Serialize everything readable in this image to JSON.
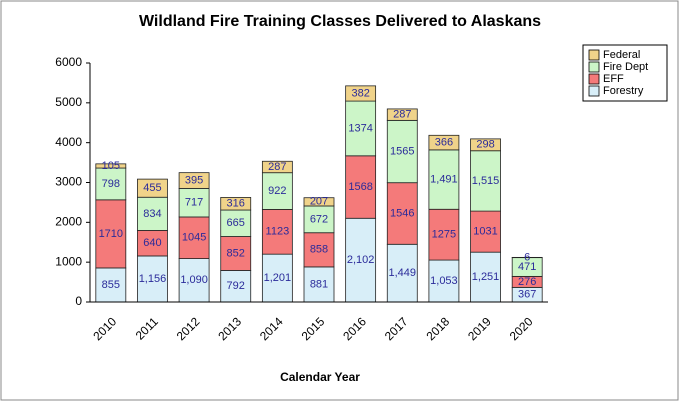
{
  "chart_data": {
    "type": "stacked_bar",
    "title": "Wildland Fire Training Classes Delivered to Alaskans",
    "x_label": "Calendar Year",
    "categories": [
      "2010",
      "2011",
      "2012",
      "2013",
      "2014",
      "2015",
      "2016",
      "2017",
      "2018",
      "2019",
      "2020"
    ],
    "series": [
      {
        "name": "Forestry",
        "color": "#d8eef8",
        "values": [
          855,
          1156,
          1090,
          792,
          1201,
          881,
          2102,
          1449,
          1053,
          1251,
          367
        ],
        "value_labels": [
          "855",
          "1,156",
          "1,090",
          "792",
          "1,201",
          "881",
          "2,102",
          "1,449",
          "1,053",
          "1,251",
          "367"
        ]
      },
      {
        "name": "EFF",
        "color": "#f47a7a",
        "values": [
          1710,
          640,
          1045,
          852,
          1123,
          858,
          1568,
          1546,
          1275,
          1031,
          276
        ],
        "value_labels": [
          "1710",
          "640",
          "1045",
          "852",
          "1123",
          "858",
          "1568",
          "1546",
          "1275",
          "1031",
          "276"
        ]
      },
      {
        "name": "Fire Dept",
        "color": "#ccf5c8",
        "values": [
          798,
          834,
          717,
          665,
          922,
          672,
          1374,
          1565,
          1491,
          1515,
          471
        ],
        "value_labels": [
          "798",
          "834",
          "717",
          "665",
          "922",
          "672",
          "1374",
          "1565",
          "1,491",
          "1,515",
          "471"
        ]
      },
      {
        "name": "Federal",
        "color": "#f0d38a",
        "values": [
          105,
          455,
          395,
          316,
          287,
          207,
          382,
          287,
          366,
          298,
          6
        ],
        "value_labels": [
          "105",
          "455",
          "395",
          "316",
          "287",
          "207",
          "382",
          "287",
          "366",
          "298",
          "6"
        ]
      }
    ],
    "ylim": [
      0,
      6000
    ],
    "yticks": [
      0,
      1000,
      2000,
      3000,
      4000,
      5000,
      6000
    ],
    "grid": false,
    "legend": "top-right"
  }
}
